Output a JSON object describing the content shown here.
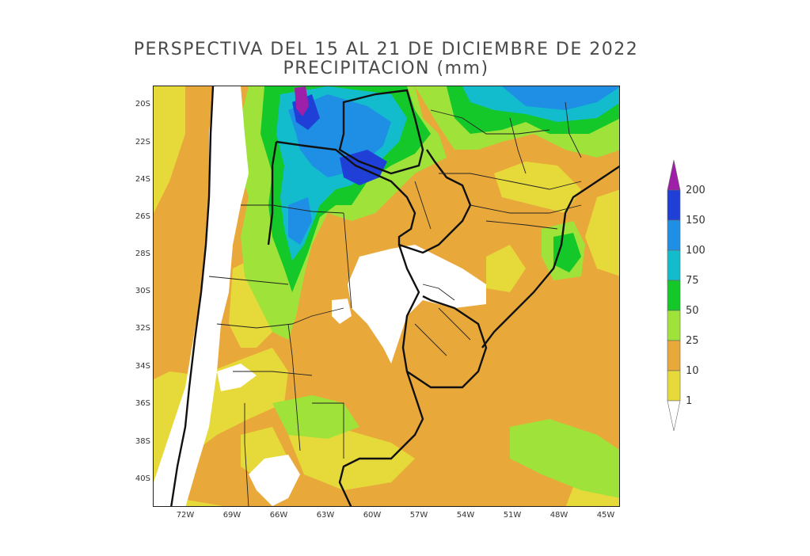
{
  "title_line1": "PERSPECTIVA DEL 15 AL 21 DE DICIEMBRE DE 2022",
  "title_line2": "PRECIPITACION (mm)",
  "lat_labels": [
    "20S",
    "22S",
    "24S",
    "26S",
    "28S",
    "30S",
    "32S",
    "34S",
    "36S",
    "38S",
    "40S"
  ],
  "lon_labels": [
    "72W",
    "69W",
    "66W",
    "63W",
    "60W",
    "57W",
    "54W",
    "51W",
    "48W",
    "45W"
  ],
  "legend": {
    "labels": [
      "200",
      "150",
      "100",
      "75",
      "50",
      "25",
      "10",
      "1"
    ],
    "colors": [
      "#9e1fa8",
      "#1f3fd6",
      "#1f8fe6",
      "#12bccc",
      "#14c82a",
      "#9ee23a",
      "#e9a93a",
      "#e6d93a",
      "#ffffff"
    ]
  }
}
